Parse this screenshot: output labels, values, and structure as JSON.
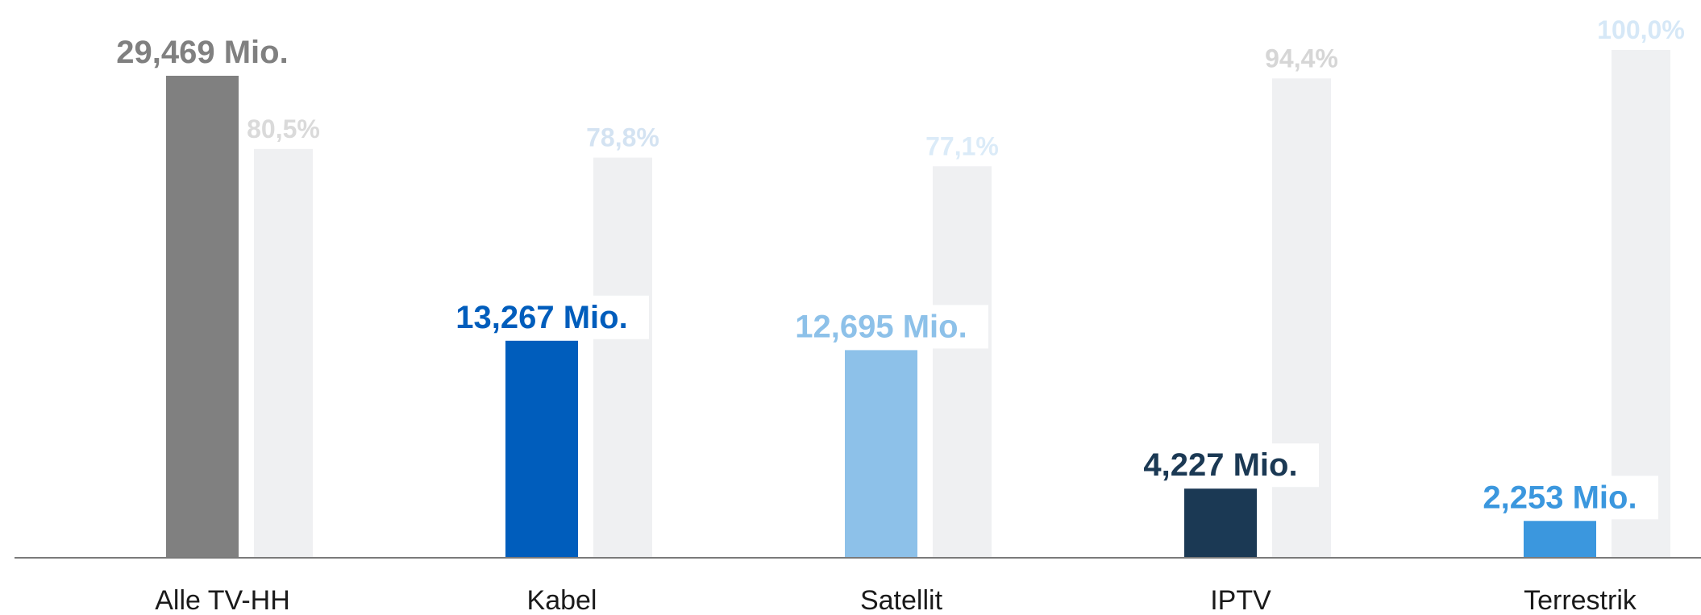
{
  "chart_data": {
    "type": "bar",
    "categories": [
      "Alle TV-HH",
      "Kabel",
      "Satellit",
      "IPTV",
      "Terrestrik"
    ],
    "series": [
      {
        "values": [
          29.469,
          13.267,
          12.695,
          4.227,
          2.253
        ],
        "labels": [
          "29,469 Mio.",
          "13,267 Mio.",
          "12,695 Mio.",
          "4,227 Mio.",
          "2,253 Mio."
        ],
        "colors": [
          "#808080",
          "#005dbc",
          "#8dc1e9",
          "#1b3954",
          "#3b97de"
        ]
      },
      {
        "values": [
          80.5,
          78.8,
          77.1,
          94.4,
          100.0
        ],
        "labels": [
          "80,5%",
          "78,8%",
          "77,1%",
          "94,4%",
          "100,0%"
        ],
        "color": "#eff0f2",
        "label_colors": [
          "#dadada",
          "#d4e3f2",
          "#dbebf8",
          "#d6d6d6",
          "#d6e8f7"
        ]
      }
    ],
    "title": "",
    "xlabel": "",
    "ylabel": "",
    "grid": false,
    "legend": "none",
    "axis_color": "#7a7a7a"
  }
}
